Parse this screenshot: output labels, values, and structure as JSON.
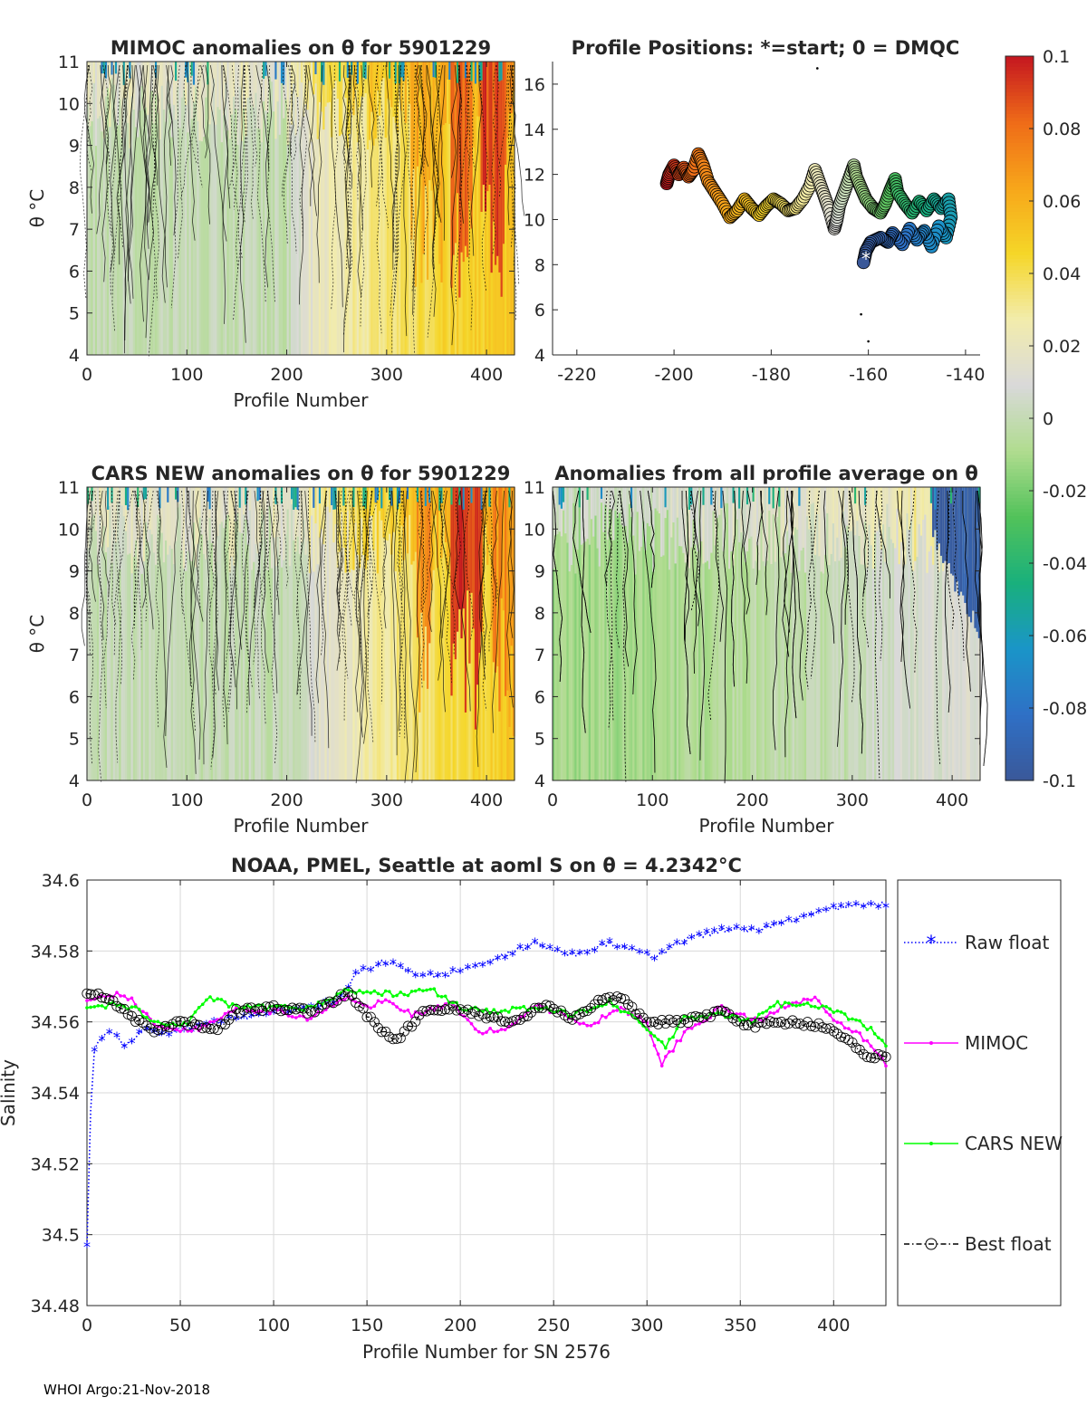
{
  "colors": {
    "raw_float": "#0000ff",
    "mimoc": "#ff00ff",
    "cars_new": "#00ff00",
    "best_float": "#000000",
    "axis": "#262626",
    "grid": "#d9d9d9"
  },
  "colormap": {
    "stops": [
      "#3a5899",
      "#2f70c6",
      "#1a95c8",
      "#19b07c",
      "#52c25a",
      "#b0dc8f",
      "#d9d9d9",
      "#f2ecac",
      "#f5d628",
      "#f7a61a",
      "#ef6b18",
      "#c41620"
    ]
  },
  "chart_data": [
    {
      "id": "mimoc",
      "type": "heatmap",
      "title": "MIMOC anomalies on θ  for 5901229",
      "xlabel": "Profile Number",
      "ylabel": "θ °C",
      "xlim": [
        0,
        428
      ],
      "ylim": [
        4,
        11
      ],
      "xticks": [
        0,
        100,
        200,
        300,
        400
      ],
      "yticks": [
        4,
        5,
        6,
        7,
        8,
        9,
        10,
        11
      ],
      "x_tick_labels": [
        "0",
        "100",
        "200",
        "300",
        "400"
      ],
      "y_tick_labels": [
        "4",
        "5",
        "6",
        "7",
        "8",
        "9",
        "10",
        "11"
      ],
      "profile": [
        [
          0,
          0.0
        ],
        [
          200,
          0.0
        ],
        [
          230,
          0.02
        ],
        [
          300,
          0.035
        ],
        [
          360,
          0.045
        ],
        [
          428,
          0.05
        ]
      ],
      "hot_columns": [
        [
          325,
          355,
          0.07
        ],
        [
          365,
          385,
          0.09
        ],
        [
          395,
          420,
          0.1
        ]
      ]
    },
    {
      "id": "positions",
      "type": "scatter",
      "title": "Profile Positions: *=start; 0 = DMQC",
      "xlim": [
        -225,
        -137
      ],
      "ylim": [
        4,
        17
      ],
      "xticks": [
        -220,
        -200,
        -180,
        -160,
        -140
      ],
      "yticks": [
        4,
        6,
        8,
        10,
        12,
        14,
        16
      ],
      "x_tick_labels": [
        "-220",
        "-200",
        "-180",
        "-160",
        "-140"
      ],
      "y_tick_labels": [
        "4",
        "6",
        "8",
        "10",
        "12",
        "14",
        "16"
      ],
      "track": [
        [
          -161.0,
          8.1
        ],
        [
          -160.5,
          8.6
        ],
        [
          -159.5,
          9.0
        ],
        [
          -157.5,
          9.2
        ],
        [
          -156.0,
          9.0
        ],
        [
          -155.0,
          9.4
        ],
        [
          -153.0,
          8.9
        ],
        [
          -151.5,
          9.6
        ],
        [
          -150.0,
          9.1
        ],
        [
          -148.5,
          9.5
        ],
        [
          -147.0,
          8.8
        ],
        [
          -145.5,
          9.7
        ],
        [
          -144.0,
          9.2
        ],
        [
          -143.0,
          10.1
        ],
        [
          -143.5,
          10.9
        ],
        [
          -145.0,
          10.5
        ],
        [
          -146.5,
          10.9
        ],
        [
          -148.0,
          10.4
        ],
        [
          -149.5,
          10.8
        ],
        [
          -151.0,
          10.3
        ],
        [
          -152.5,
          10.7
        ],
        [
          -154.0,
          11.2
        ],
        [
          -154.5,
          11.8
        ],
        [
          -155.5,
          11.3
        ],
        [
          -156.5,
          10.7
        ],
        [
          -157.5,
          10.3
        ],
        [
          -159.0,
          10.5
        ],
        [
          -160.5,
          10.9
        ],
        [
          -161.5,
          11.4
        ],
        [
          -162.5,
          11.9
        ],
        [
          -163.0,
          12.4
        ],
        [
          -164.0,
          11.8
        ],
        [
          -165.0,
          11.2
        ],
        [
          -166.0,
          10.6
        ],
        [
          -166.5,
          10.0
        ],
        [
          -167.0,
          9.6
        ],
        [
          -168.0,
          10.4
        ],
        [
          -169.0,
          11.0
        ],
        [
          -170.0,
          11.6
        ],
        [
          -171.0,
          12.2
        ],
        [
          -172.0,
          11.5
        ],
        [
          -173.5,
          10.9
        ],
        [
          -175.0,
          10.5
        ],
        [
          -176.5,
          10.4
        ],
        [
          -178.0,
          10.7
        ],
        [
          -179.5,
          10.9
        ],
        [
          -181.0,
          10.6
        ],
        [
          -182.5,
          10.2
        ],
        [
          -184.0,
          10.5
        ],
        [
          -185.5,
          10.9
        ],
        [
          -187.0,
          10.4
        ],
        [
          -188.5,
          10.1
        ],
        [
          -190.0,
          10.7
        ],
        [
          -191.5,
          11.2
        ],
        [
          -193.0,
          11.7
        ],
        [
          -194.0,
          12.4
        ],
        [
          -195.0,
          12.9
        ],
        [
          -196.0,
          12.2
        ],
        [
          -197.0,
          11.9
        ],
        [
          -198.0,
          12.3
        ],
        [
          -199.0,
          12.0
        ],
        [
          -200.0,
          12.4
        ],
        [
          -201.0,
          12.0
        ],
        [
          -201.5,
          11.6
        ]
      ],
      "start": [
        -160.5,
        8.3
      ],
      "outliers": [
        [
          -170.5,
          16.7
        ],
        [
          -161.5,
          5.8
        ],
        [
          -160.0,
          4.6
        ]
      ]
    },
    {
      "id": "cars",
      "type": "heatmap",
      "title": "CARS NEW anomalies on θ for 5901229",
      "xlabel": "Profile Number",
      "ylabel": "θ °C",
      "xlim": [
        0,
        428
      ],
      "ylim": [
        4,
        11
      ],
      "xticks": [
        0,
        100,
        200,
        300,
        400
      ],
      "yticks": [
        4,
        5,
        6,
        7,
        8,
        9,
        10,
        11
      ],
      "x_tick_labels": [
        "0",
        "100",
        "200",
        "300",
        "400"
      ],
      "y_tick_labels": [
        "4",
        "5",
        "6",
        "7",
        "8",
        "9",
        "10",
        "11"
      ],
      "profile": [
        [
          0,
          0.0
        ],
        [
          200,
          0.0
        ],
        [
          240,
          0.015
        ],
        [
          300,
          0.03
        ],
        [
          360,
          0.04
        ],
        [
          428,
          0.05
        ]
      ],
      "hot_columns": [
        [
          330,
          345,
          0.08
        ],
        [
          365,
          395,
          0.1
        ],
        [
          405,
          428,
          0.08
        ]
      ]
    },
    {
      "id": "allprof",
      "type": "heatmap",
      "title": "Anomalies from all profile average on θ",
      "xlabel": "Profile Number",
      "xlim": [
        0,
        428
      ],
      "ylim": [
        4,
        11
      ],
      "xticks": [
        0,
        100,
        200,
        300,
        400
      ],
      "yticks": [
        4,
        5,
        6,
        7,
        8,
        9,
        10,
        11
      ],
      "x_tick_labels": [
        "0",
        "100",
        "200",
        "300",
        "400"
      ],
      "y_tick_labels": [
        "4",
        "5",
        "6",
        "7",
        "8",
        "9",
        "10",
        "11"
      ],
      "profile": [
        [
          0,
          -0.012
        ],
        [
          120,
          -0.01
        ],
        [
          200,
          -0.004
        ],
        [
          300,
          0.0
        ],
        [
          360,
          0.008
        ],
        [
          428,
          0.01
        ]
      ],
      "cold_region": [
        380,
        428,
        -0.1
      ]
    },
    {
      "id": "salinity",
      "type": "line",
      "title": "NOAA, PMEL, Seattle at aoml S on θ = 4.2342°C",
      "xlabel": "Profile Number for SN 2576",
      "ylabel": "Salinity",
      "xlim": [
        0,
        428
      ],
      "ylim": [
        34.48,
        34.6
      ],
      "xticks": [
        0,
        50,
        100,
        150,
        200,
        250,
        300,
        350,
        400
      ],
      "yticks": [
        34.48,
        34.5,
        34.52,
        34.54,
        34.56,
        34.58,
        34.6
      ],
      "x_tick_labels": [
        "0",
        "50",
        "100",
        "150",
        "200",
        "250",
        "300",
        "350",
        "400"
      ],
      "y_tick_labels": [
        "34.48",
        "34.5",
        "34.52",
        "34.54",
        "34.56",
        "34.58",
        "34.6"
      ],
      "series": [
        {
          "name": "Raw float",
          "color": "#0000ff",
          "knots": [
            [
              0,
              34.497
            ],
            [
              2,
              34.535
            ],
            [
              3,
              34.551
            ],
            [
              8,
              34.556
            ],
            [
              15,
              34.557
            ],
            [
              20,
              34.553
            ],
            [
              30,
              34.558
            ],
            [
              40,
              34.556
            ],
            [
              60,
              34.559
            ],
            [
              80,
              34.561
            ],
            [
              100,
              34.563
            ],
            [
              120,
              34.564
            ],
            [
              135,
              34.566
            ],
            [
              145,
              34.574
            ],
            [
              160,
              34.577
            ],
            [
              180,
              34.573
            ],
            [
              200,
              34.574
            ],
            [
              220,
              34.578
            ],
            [
              240,
              34.582
            ],
            [
              260,
              34.579
            ],
            [
              280,
              34.582
            ],
            [
              295,
              34.58
            ],
            [
              305,
              34.578
            ],
            [
              320,
              34.583
            ],
            [
              340,
              34.586
            ],
            [
              360,
              34.586
            ],
            [
              380,
              34.589
            ],
            [
              400,
              34.592
            ],
            [
              410,
              34.593
            ],
            [
              428,
              34.593
            ]
          ]
        },
        {
          "name": "MIMOC",
          "color": "#ff00ff",
          "knots": [
            [
              0,
              34.566
            ],
            [
              20,
              34.568
            ],
            [
              40,
              34.558
            ],
            [
              60,
              34.558
            ],
            [
              80,
              34.564
            ],
            [
              100,
              34.563
            ],
            [
              120,
              34.561
            ],
            [
              140,
              34.567
            ],
            [
              150,
              34.564
            ],
            [
              160,
              34.566
            ],
            [
              175,
              34.562
            ],
            [
              195,
              34.565
            ],
            [
              210,
              34.557
            ],
            [
              225,
              34.558
            ],
            [
              240,
              34.565
            ],
            [
              255,
              34.562
            ],
            [
              270,
              34.559
            ],
            [
              285,
              34.564
            ],
            [
              300,
              34.56
            ],
            [
              308,
              34.548
            ],
            [
              320,
              34.557
            ],
            [
              340,
              34.564
            ],
            [
              360,
              34.56
            ],
            [
              375,
              34.565
            ],
            [
              390,
              34.567
            ],
            [
              400,
              34.56
            ],
            [
              415,
              34.556
            ],
            [
              428,
              34.548
            ]
          ]
        },
        {
          "name": "CARS NEW",
          "color": "#00ff00",
          "knots": [
            [
              0,
              34.564
            ],
            [
              15,
              34.565
            ],
            [
              25,
              34.564
            ],
            [
              40,
              34.559
            ],
            [
              55,
              34.56
            ],
            [
              65,
              34.567
            ],
            [
              80,
              34.564
            ],
            [
              100,
              34.564
            ],
            [
              120,
              34.564
            ],
            [
              140,
              34.569
            ],
            [
              155,
              34.568
            ],
            [
              170,
              34.568
            ],
            [
              185,
              34.569
            ],
            [
              200,
              34.564
            ],
            [
              220,
              34.563
            ],
            [
              240,
              34.564
            ],
            [
              260,
              34.562
            ],
            [
              280,
              34.566
            ],
            [
              300,
              34.558
            ],
            [
              310,
              34.553
            ],
            [
              320,
              34.561
            ],
            [
              340,
              34.562
            ],
            [
              355,
              34.56
            ],
            [
              370,
              34.565
            ],
            [
              390,
              34.565
            ],
            [
              405,
              34.562
            ],
            [
              420,
              34.558
            ],
            [
              428,
              34.553
            ]
          ]
        },
        {
          "name": "Best float",
          "color": "#000000",
          "knots": [
            [
              0,
              34.568
            ],
            [
              10,
              34.567
            ],
            [
              20,
              34.563
            ],
            [
              35,
              34.557
            ],
            [
              50,
              34.56
            ],
            [
              60,
              34.559
            ],
            [
              70,
              34.558
            ],
            [
              80,
              34.563
            ],
            [
              100,
              34.564
            ],
            [
              120,
              34.563
            ],
            [
              140,
              34.568
            ],
            [
              150,
              34.562
            ],
            [
              165,
              34.554
            ],
            [
              180,
              34.563
            ],
            [
              195,
              34.564
            ],
            [
              210,
              34.562
            ],
            [
              230,
              34.56
            ],
            [
              245,
              34.565
            ],
            [
              260,
              34.561
            ],
            [
              275,
              34.566
            ],
            [
              285,
              34.567
            ],
            [
              300,
              34.56
            ],
            [
              320,
              34.56
            ],
            [
              340,
              34.563
            ],
            [
              355,
              34.559
            ],
            [
              375,
              34.56
            ],
            [
              395,
              34.559
            ],
            [
              405,
              34.556
            ],
            [
              415,
              34.551
            ],
            [
              428,
              34.55
            ]
          ]
        }
      ],
      "legend_position": "right"
    }
  ],
  "colorbar": {
    "min": -0.1,
    "max": 0.1,
    "ticks": [
      0.1,
      0.08,
      0.06,
      0.04,
      0.02,
      0,
      -0.02,
      -0.04,
      -0.06,
      -0.08,
      -0.1
    ],
    "tick_labels": [
      "0.1",
      "0.08",
      "0.06",
      "0.04",
      "0.02",
      "0",
      "-0.02",
      "-0.04",
      "-0.06",
      "-0.08",
      "-0.1"
    ]
  },
  "footer": "WHOI Argo:21-Nov-2018"
}
